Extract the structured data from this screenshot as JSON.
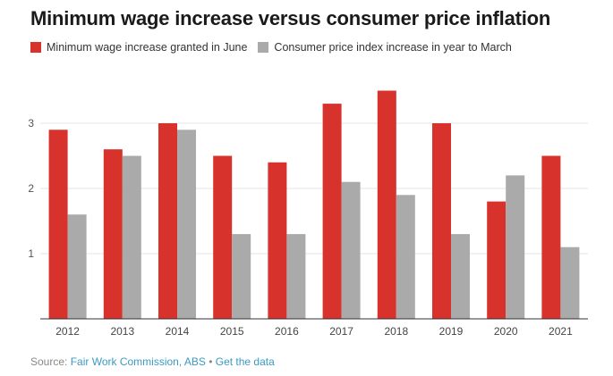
{
  "header": {
    "title": "Minimum wage increase versus consumer price inflation"
  },
  "legend": {
    "items": [
      {
        "label": "Minimum wage increase granted in June",
        "color": "#d7322b"
      },
      {
        "label": "Consumer price index increase in year to March",
        "color": "#aaaaaa"
      }
    ]
  },
  "footer": {
    "prefix": "Source: ",
    "source_link": "Fair Work Commission, ABS",
    "separator": " • ",
    "data_link": "Get the data"
  },
  "chart_data": {
    "type": "bar",
    "title": "Minimum wage increase versus consumer price inflation",
    "categories": [
      "2012",
      "2013",
      "2014",
      "2015",
      "2016",
      "2017",
      "2018",
      "2019",
      "2020",
      "2021"
    ],
    "series": [
      {
        "name": "Minimum wage increase granted in June",
        "color": "#d7322b",
        "values": [
          2.9,
          2.6,
          3.0,
          2.5,
          2.4,
          3.3,
          3.5,
          3.0,
          1.8,
          2.5
        ]
      },
      {
        "name": "Consumer price index increase in year to March",
        "color": "#aaaaaa",
        "values": [
          1.6,
          2.5,
          2.9,
          1.3,
          1.3,
          2.1,
          1.9,
          1.3,
          2.2,
          1.1
        ]
      }
    ],
    "yticks": [
      1,
      2,
      3
    ],
    "ylim": [
      0,
      3.9
    ],
    "grid": true,
    "legend_position": "top-left",
    "xlabel": "",
    "ylabel": ""
  }
}
